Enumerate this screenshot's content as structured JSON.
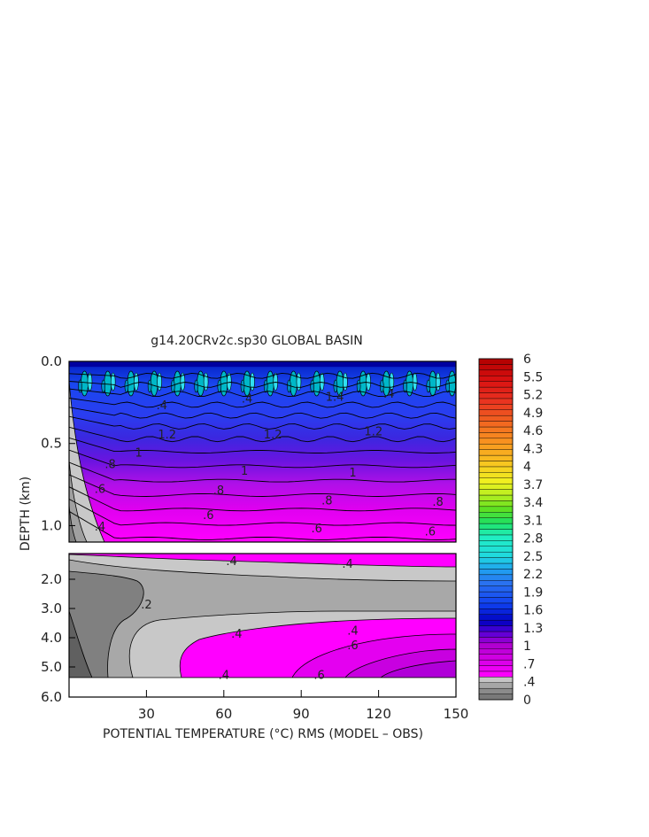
{
  "chart_data": {
    "type": "heatmap",
    "title": "g14.20CRv2c.sp30 GLOBAL BASIN",
    "xlabel": "POTENTIAL TEMPERATURE (°C) RMS (MODEL – OBS)",
    "ylabel": "DEPTH (km)",
    "xlim": [
      0,
      150
    ],
    "x_ticks": [
      "30",
      "60",
      "90",
      "120",
      "150"
    ],
    "upper_panel": {
      "ylim": [
        0.0,
        1.1
      ],
      "y_ticks": [
        "0.0",
        "0.5",
        "1.0"
      ],
      "contour_labels": [
        {
          "text": ".4",
          "x": 36,
          "y": 0.29
        },
        {
          "text": ".4",
          "x": 69,
          "y": 0.25
        },
        {
          "text": "1.4",
          "x": 103,
          "y": 0.24
        },
        {
          "text": ".4",
          "x": 124,
          "y": 0.22
        },
        {
          "text": "1.2",
          "x": 38,
          "y": 0.47
        },
        {
          "text": "1.2",
          "x": 79,
          "y": 0.47
        },
        {
          "text": "1.2",
          "x": 118,
          "y": 0.45
        },
        {
          "text": "1",
          "x": 27,
          "y": 0.58
        },
        {
          "text": "1",
          "x": 68,
          "y": 0.69
        },
        {
          "text": "1",
          "x": 110,
          "y": 0.7
        },
        {
          "text": ".8",
          "x": 16,
          "y": 0.65
        },
        {
          "text": ".6",
          "x": 12,
          "y": 0.8
        },
        {
          "text": ".8",
          "x": 58,
          "y": 0.81
        },
        {
          "text": ".8",
          "x": 100,
          "y": 0.87
        },
        {
          "text": ".8",
          "x": 143,
          "y": 0.88
        },
        {
          "text": ".6",
          "x": 54,
          "y": 0.96
        },
        {
          "text": ".6",
          "x": 96,
          "y": 1.04
        },
        {
          "text": ".6",
          "x": 140,
          "y": 1.06
        },
        {
          "text": ".4",
          "x": 12,
          "y": 1.03
        }
      ]
    },
    "lower_panel": {
      "ylim": [
        1.1,
        6.0
      ],
      "y_ticks": [
        "2.0",
        "3.0",
        "4.0",
        "5.0",
        "6.0"
      ],
      "contour_labels": [
        {
          "text": ".4",
          "x": 63,
          "y": 1.5
        },
        {
          "text": ".4",
          "x": 108,
          "y": 1.6
        },
        {
          "text": ".2",
          "x": 30,
          "y": 3.0
        },
        {
          "text": ".4",
          "x": 65,
          "y": 4.0
        },
        {
          "text": ".4",
          "x": 110,
          "y": 3.9
        },
        {
          "text": ".6",
          "x": 110,
          "y": 4.4
        },
        {
          "text": ".4",
          "x": 60,
          "y": 5.4
        },
        {
          "text": ".6",
          "x": 97,
          "y": 5.4
        }
      ]
    },
    "colorbar": {
      "min": 0,
      "max": 6,
      "labels": [
        "6",
        "5.5",
        "5.2",
        "4.9",
        "4.6",
        "4.3",
        "4",
        "3.7",
        "3.4",
        "3.1",
        "2.8",
        "2.5",
        "2.2",
        "1.9",
        "1.6",
        "1.3",
        "1",
        ".7",
        ".4",
        "0"
      ]
    }
  }
}
